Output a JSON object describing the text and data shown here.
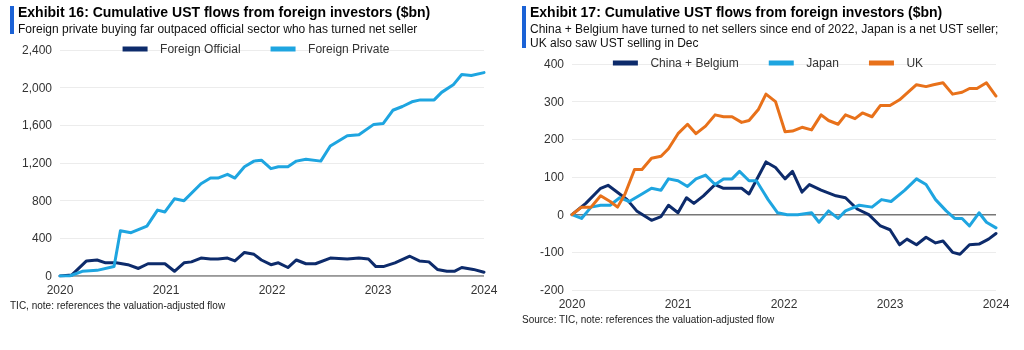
{
  "chart_data": [
    {
      "type": "line",
      "title": "Exhibit 16: Cumulative UST flows from foreign investors ($bn)",
      "subtitle": "Foreign private buying far outpaced official sector who has turned net seller",
      "xlim": [
        2020,
        2024
      ],
      "xticks": [
        2020,
        2021,
        2022,
        2023,
        2024
      ],
      "ylim": [
        0,
        2400
      ],
      "yticks": [
        0,
        400,
        800,
        {
          "value": 1200,
          "label": "1,200"
        },
        {
          "value": 1600,
          "label": "1,600"
        },
        {
          "value": 2000,
          "label": "2,000"
        },
        {
          "value": 2400,
          "label": "2,400"
        }
      ],
      "grid": "y",
      "legend": "top",
      "marker": "none",
      "line_style": "solid",
      "annotations": [
        "TIC, note: references the valuation-adjusted flow"
      ],
      "series": [
        {
          "name": "Foreign Official",
          "color": "#0d2b6b",
          "x": [
            2020,
            2020.11,
            2020.25,
            2020.35,
            2020.43,
            2020.53,
            2020.64,
            2020.74,
            2020.83,
            2020.99,
            2021.08,
            2021.17,
            2021.24,
            2021.33,
            2021.42,
            2021.49,
            2021.58,
            2021.65,
            2021.74,
            2021.83,
            2021.9,
            2021.99,
            2022.06,
            2022.15,
            2022.23,
            2022.32,
            2022.41,
            2022.55,
            2022.71,
            2022.82,
            2022.91,
            2022.98,
            2023.05,
            2023.16,
            2023.3,
            2023.39,
            2023.48,
            2023.56,
            2023.65,
            2023.72,
            2023.79,
            2023.9,
            2024
          ],
          "values": [
            0,
            10,
            160,
            170,
            140,
            140,
            120,
            80,
            130,
            130,
            50,
            140,
            150,
            190,
            180,
            180,
            190,
            160,
            250,
            230,
            170,
            120,
            140,
            90,
            170,
            130,
            130,
            190,
            180,
            190,
            180,
            100,
            100,
            140,
            210,
            160,
            150,
            70,
            50,
            50,
            90,
            70,
            40
          ]
        },
        {
          "name": "Foreign Private",
          "color": "#1ea5e0",
          "x": [
            2020,
            2020.09,
            2020.21,
            2020.35,
            2020.51,
            2020.57,
            2020.67,
            2020.82,
            2020.92,
            2020.99,
            2021.08,
            2021.17,
            2021.33,
            2021.42,
            2021.49,
            2021.58,
            2021.65,
            2021.74,
            2021.83,
            2021.9,
            2021.99,
            2022.06,
            2022.15,
            2022.23,
            2022.32,
            2022.46,
            2022.55,
            2022.71,
            2022.82,
            2022.96,
            2023.05,
            2023.14,
            2023.23,
            2023.32,
            2023.4,
            2023.53,
            2023.6,
            2023.71,
            2023.79,
            2023.88,
            2024
          ],
          "values": [
            0,
            0,
            50,
            60,
            100,
            480,
            460,
            530,
            700,
            680,
            820,
            800,
            980,
            1040,
            1040,
            1080,
            1040,
            1160,
            1220,
            1230,
            1140,
            1160,
            1160,
            1220,
            1240,
            1220,
            1380,
            1490,
            1500,
            1610,
            1620,
            1760,
            1800,
            1850,
            1870,
            1870,
            1950,
            2030,
            2140,
            2130,
            2160
          ]
        }
      ]
    },
    {
      "type": "line",
      "title": "Exhibit 17: Cumulative UST flows from foreign investors ($bn)",
      "subtitle": "China + Belgium have turned to net sellers since end of 2022, Japan is a net UST seller; UK also saw UST selling in Dec",
      "xlim": [
        2020,
        2024
      ],
      "xticks": [
        2020,
        2021,
        2022,
        2023,
        2024
      ],
      "ylim": [
        -200,
        400
      ],
      "yticks": [
        -200,
        -100,
        0,
        100,
        200,
        300,
        400
      ],
      "grid": "y",
      "legend": "top",
      "marker": "none",
      "line_style": "solid",
      "annotations": [
        "Source: TIC, note: references the valuation-adjusted flow"
      ],
      "series": [
        {
          "name": "China + Belgium",
          "color": "#0d2b6b",
          "x": [
            2020,
            2020.13,
            2020.27,
            2020.34,
            2020.45,
            2020.52,
            2020.61,
            2020.75,
            2020.84,
            2020.91,
            2021.0,
            2021.08,
            2021.15,
            2021.24,
            2021.35,
            2021.43,
            2021.6,
            2021.67,
            2021.83,
            2021.92,
            2022.01,
            2022.08,
            2022.17,
            2022.24,
            2022.35,
            2022.49,
            2022.58,
            2022.69,
            2022.8,
            2022.91,
            2023.0,
            2023.09,
            2023.16,
            2023.25,
            2023.34,
            2023.43,
            2023.5,
            2023.59,
            2023.66,
            2023.75,
            2023.84,
            2023.93,
            2024
          ],
          "values": [
            0,
            30,
            70,
            78,
            55,
            40,
            10,
            -15,
            -5,
            25,
            5,
            45,
            30,
            50,
            80,
            70,
            70,
            55,
            140,
            125,
            95,
            115,
            60,
            80,
            65,
            50,
            45,
            15,
            0,
            -30,
            -40,
            -80,
            -65,
            -80,
            -60,
            -75,
            -70,
            -100,
            -105,
            -80,
            -78,
            -65,
            -50
          ]
        },
        {
          "name": "Japan",
          "color": "#1ea5e0",
          "x": [
            2020,
            2020.09,
            2020.18,
            2020.27,
            2020.36,
            2020.45,
            2020.54,
            2020.66,
            2020.75,
            2020.84,
            2020.91,
            2021.0,
            2021.09,
            2021.17,
            2021.26,
            2021.35,
            2021.43,
            2021.51,
            2021.58,
            2021.67,
            2021.74,
            2021.85,
            2021.94,
            2022.03,
            2022.13,
            2022.26,
            2022.33,
            2022.42,
            2022.51,
            2022.58,
            2022.71,
            2022.83,
            2022.92,
            2023.01,
            2023.14,
            2023.25,
            2023.34,
            2023.43,
            2023.53,
            2023.61,
            2023.68,
            2023.75,
            2023.84,
            2023.91,
            2024
          ],
          "values": [
            0,
            -10,
            20,
            25,
            25,
            45,
            35,
            55,
            70,
            65,
            95,
            90,
            75,
            95,
            105,
            80,
            95,
            95,
            115,
            90,
            90,
            40,
            5,
            0,
            0,
            5,
            -20,
            10,
            -10,
            10,
            25,
            20,
            40,
            35,
            65,
            95,
            80,
            40,
            10,
            -10,
            -10,
            -30,
            5,
            -20,
            -35
          ]
        },
        {
          "name": "UK",
          "color": "#e8711a",
          "x": [
            2020,
            2020.09,
            2020.18,
            2020.27,
            2020.36,
            2020.43,
            2020.5,
            2020.59,
            2020.66,
            2020.75,
            2020.84,
            2020.91,
            2021.0,
            2021.09,
            2021.17,
            2021.26,
            2021.35,
            2021.43,
            2021.51,
            2021.6,
            2021.67,
            2021.76,
            2021.83,
            2021.92,
            2022.01,
            2022.08,
            2022.17,
            2022.26,
            2022.35,
            2022.42,
            2022.51,
            2022.58,
            2022.67,
            2022.74,
            2022.83,
            2022.91,
            2023.0,
            2023.09,
            2023.25,
            2023.34,
            2023.41,
            2023.5,
            2023.59,
            2023.68,
            2023.75,
            2023.82,
            2023.91,
            2024
          ],
          "values": [
            0,
            20,
            20,
            50,
            35,
            20,
            55,
            120,
            120,
            150,
            155,
            175,
            215,
            240,
            215,
            235,
            265,
            260,
            260,
            245,
            250,
            280,
            320,
            300,
            220,
            222,
            232,
            225,
            265,
            250,
            240,
            265,
            255,
            270,
            260,
            290,
            290,
            305,
            345,
            340,
            345,
            350,
            320,
            325,
            335,
            335,
            350,
            315
          ]
        }
      ]
    }
  ]
}
